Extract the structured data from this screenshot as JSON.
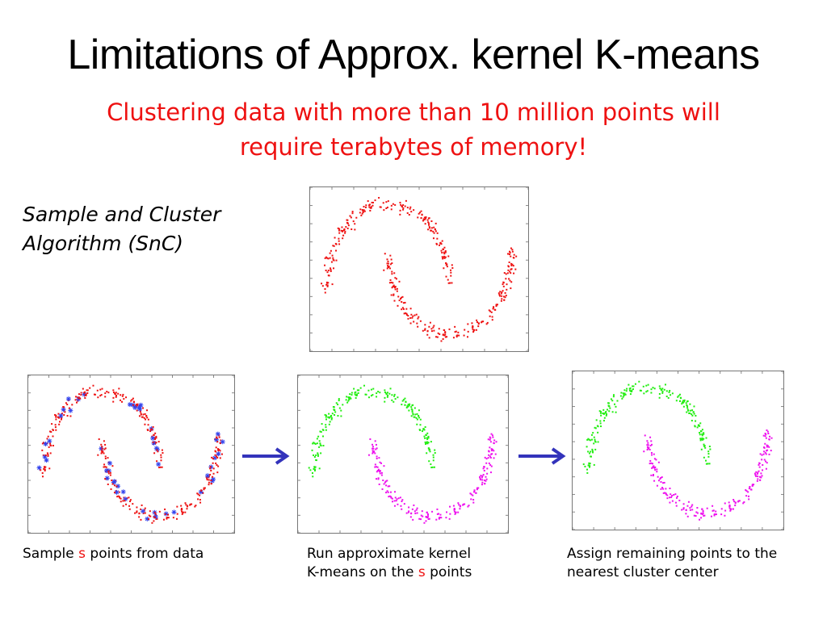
{
  "slide": {
    "title": "Limitations of Approx. kernel K-means",
    "subtitle_line1": "Clustering data with more than 10 million points will",
    "subtitle_line2": "require terabytes of memory!",
    "algorithm_line1": "Sample and Cluster",
    "algorithm_line2": "Algorithm (SnC)"
  },
  "captions": {
    "step1_pre": "Sample ",
    "step1_var": "s",
    "step1_post": " points from  data",
    "step2_line1": "Run approximate kernel",
    "step2_line2_pre": "K-means on the ",
    "step2_var": "s",
    "step2_line2_post": " points",
    "step3_line1": "Assign remaining points to the",
    "step3_line2": "nearest cluster center"
  },
  "colors": {
    "data_points": "#ee1111",
    "sampled_points": "#3344ee",
    "cluster_1": "#22ee11",
    "cluster_2": "#ee11ee",
    "arrow": "#3333bb",
    "highlight_text": "#ee1111"
  },
  "figures": [
    {
      "id": "full-data",
      "description_icon": "two-moons-scatter",
      "coloring": "data",
      "show_samples": false
    },
    {
      "id": "sampled-data",
      "description_icon": "two-moons-scatter",
      "coloring": "data",
      "show_samples": true
    },
    {
      "id": "sample-clustered",
      "description_icon": "two-moons-scatter",
      "coloring": "clusters-sample-only",
      "show_samples": false
    },
    {
      "id": "all-assigned",
      "description_icon": "two-moons-scatter",
      "coloring": "clusters",
      "show_samples": false
    }
  ]
}
